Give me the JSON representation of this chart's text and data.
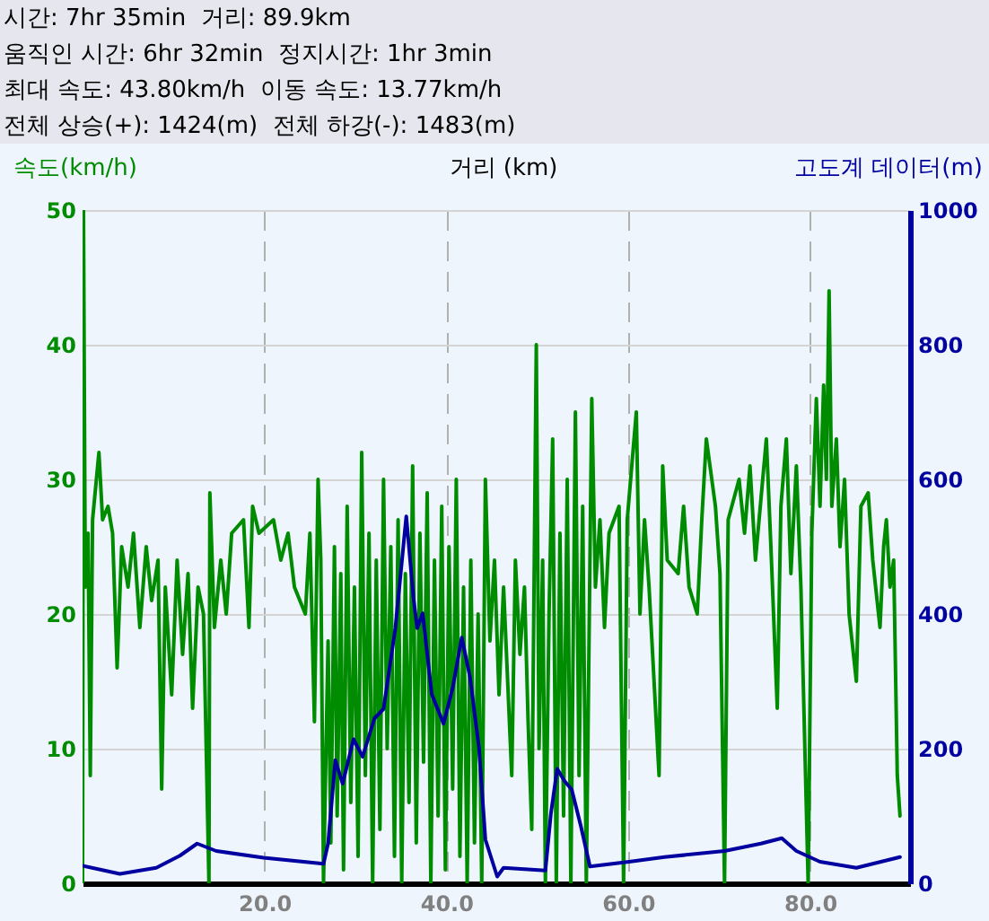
{
  "chart_data": {
    "type": "line",
    "annotations": [
      "시간: 7hr 35min  거리: 89.9km",
      "움직인 시간: 6hr 32min  정지시간: 1hr 3min",
      "최대 속도: 43.80km/h  이동 속도: 13.77km/h",
      "전체 상승(+): 1424(m)  전체 하강(-): 1483(m)"
    ],
    "xlabel": "거리 (km)",
    "ylabel": "속도(km/h)",
    "y2label": "고도계 데이터(m)",
    "xlim": [
      0,
      91
    ],
    "xticks": [
      {
        "value": 20,
        "label": "20.0"
      },
      {
        "value": 40,
        "label": "40.0"
      },
      {
        "value": 60,
        "label": "60.0"
      },
      {
        "value": 80,
        "label": "80.0"
      }
    ],
    "ylim": [
      0,
      50
    ],
    "yticks": [
      0,
      10,
      20,
      30,
      40,
      50
    ],
    "y2lim": [
      0,
      1000
    ],
    "y2ticks": [
      0,
      200,
      400,
      600,
      800,
      1000
    ],
    "grid": true,
    "series": [
      {
        "color": "#008c00",
        "x": [
          0,
          0.1,
          0.3,
          0.6,
          0.85,
          1.1,
          1.8,
          2.2,
          2.8,
          3.3,
          3.8,
          4.3,
          5.0,
          5.6,
          6.3,
          7.0,
          7.6,
          8.3,
          8.7,
          9.1,
          9.8,
          10.4,
          11.0,
          11.6,
          12.1,
          12.7,
          13.3,
          13.9,
          14.0,
          14.5,
          15.2,
          15.8,
          16.4,
          17.7,
          18.3,
          18.7,
          19.4,
          21.0,
          21.8,
          22.6,
          23.3,
          24.5,
          25.0,
          25.5,
          25.9,
          26.2,
          26.5,
          27.0,
          27.3,
          27.7,
          28.0,
          28.4,
          28.7,
          29.1,
          29.5,
          29.9,
          30.3,
          30.7,
          31.1,
          31.5,
          31.9,
          32.3,
          32.7,
          33.1,
          33.5,
          33.9,
          34.3,
          34.7,
          35.1,
          35.5,
          35.9,
          36.3,
          36.7,
          37.1,
          37.5,
          37.9,
          38.3,
          38.7,
          39.1,
          39.5,
          39.9,
          40.3,
          40.7,
          41.1,
          41.5,
          41.9,
          42.3,
          42.7,
          43.1,
          43.5,
          43.9,
          44.3,
          44.8,
          45.3,
          45.8,
          46.3,
          47.2,
          47.6,
          48.1,
          48.6,
          49.0,
          49.4,
          49.9,
          50.2,
          50.6,
          50.9,
          51.3,
          51.7,
          52.1,
          52.5,
          52.9,
          53.3,
          53.7,
          54.2,
          54.6,
          55.0,
          55.4,
          56.0,
          56.4,
          56.9,
          57.4,
          57.9,
          59.0,
          59.5,
          59.9,
          60.9,
          61.3,
          61.8,
          62.3,
          63.4,
          63.8,
          64.3,
          65.5,
          66.1,
          66.7,
          67.6,
          68.1,
          68.6,
          69.6,
          70.1,
          70.6,
          71.0,
          72.2,
          72.8,
          73.4,
          74.0,
          75.2,
          75.7,
          76.4,
          76.8,
          77.4,
          77.9,
          78.5,
          79.0,
          79.8,
          80.2,
          80.7,
          81.1,
          81.5,
          81.8,
          82.1,
          82.4,
          82.9,
          83.3,
          83.8,
          84.3,
          85.1,
          85.6,
          86.4,
          86.9,
          87.7,
          88.1,
          88.4,
          88.8,
          89.2,
          89.6,
          89.9
        ],
        "values": [
          0,
          50,
          22,
          26,
          8,
          27,
          32,
          27,
          28,
          26,
          16,
          25,
          22,
          26,
          19,
          25,
          21,
          24,
          7,
          22,
          14,
          24,
          17,
          23,
          13,
          22,
          20,
          0,
          29,
          19,
          24,
          20,
          26,
          27,
          19,
          28,
          26,
          27,
          24,
          26,
          22,
          20,
          26,
          12,
          30,
          24,
          0,
          18,
          3,
          25,
          5,
          23,
          1,
          28,
          6,
          22,
          2,
          32,
          8,
          26,
          0,
          24,
          4,
          30,
          10,
          25,
          2,
          27,
          0,
          23,
          6,
          31,
          3,
          26,
          9,
          29,
          0,
          24,
          5,
          28,
          1,
          25,
          7,
          30,
          2,
          22,
          0,
          24,
          3,
          20,
          0,
          30,
          18,
          24,
          14,
          22,
          8,
          24,
          17,
          22,
          12,
          4,
          40,
          10,
          24,
          0,
          20,
          33,
          0,
          26,
          5,
          30,
          0,
          35,
          8,
          28,
          0,
          36,
          22,
          27,
          19,
          26,
          28,
          0,
          27,
          35,
          20,
          27,
          22,
          8,
          31,
          24,
          23,
          28,
          22,
          20,
          27,
          33,
          28,
          23,
          0,
          27,
          30,
          26,
          31,
          24,
          33,
          25,
          13,
          28,
          33,
          23,
          31,
          22,
          0,
          26,
          36,
          28,
          37,
          30,
          44,
          28,
          33,
          25,
          30,
          20,
          15,
          28,
          29,
          24,
          19,
          25,
          27,
          22,
          24,
          8,
          5
        ]
      },
      {
        "axis": "y2",
        "color": "#0000a0",
        "x": [
          0,
          4.1,
          8.1,
          10.7,
          12.6,
          14.7,
          19.9,
          26.5,
          27.0,
          27.8,
          28.6,
          29.8,
          30.8,
          32.1,
          33.1,
          34.4,
          35.6,
          36.4,
          36.8,
          37.4,
          38.4,
          39.7,
          40.7,
          41.7,
          42.6,
          43.6,
          44.3,
          45.6,
          46.3,
          50.9,
          51.5,
          52.2,
          53.0,
          53.8,
          54.8,
          55.8,
          60.1,
          64.0,
          70.6,
          74.6,
          76.9,
          78.5,
          81.1,
          85.1,
          89.0,
          89.9
        ],
        "values": [
          26,
          14,
          23,
          41,
          59,
          48,
          38,
          29,
          59,
          183,
          148,
          214,
          188,
          245,
          259,
          379,
          545,
          423,
          379,
          401,
          281,
          237,
          290,
          365,
          307,
          201,
          65,
          10,
          23,
          19,
          103,
          170,
          152,
          139,
          85,
          25,
          32,
          39,
          48,
          59,
          67,
          48,
          32,
          23,
          36,
          39
        ]
      }
    ]
  }
}
